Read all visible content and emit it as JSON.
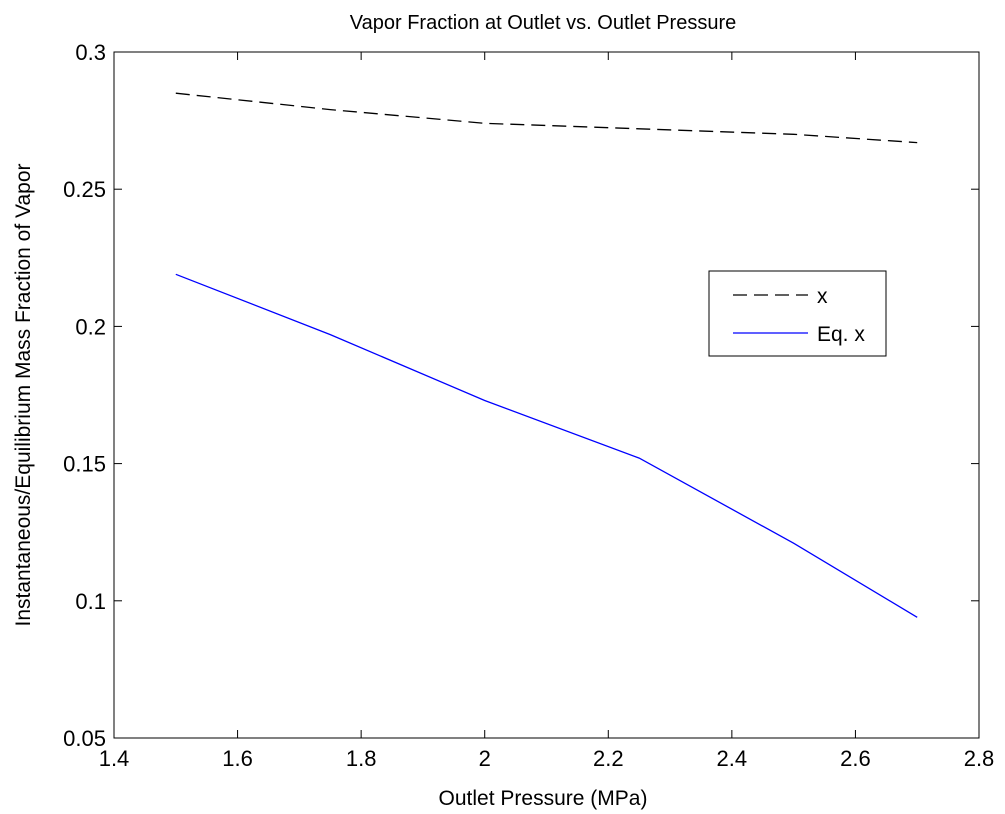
{
  "chart_data": {
    "type": "line",
    "title": "Vapor Fraction at Outlet vs. Outlet Pressure",
    "xlabel": "Outlet Pressure (MPa)",
    "ylabel": "Instantaneous/Equilibrium Mass Fraction of Vapor",
    "xlim": [
      1.4,
      2.8
    ],
    "ylim": [
      0.05,
      0.3
    ],
    "xticks": [
      1.4,
      1.6,
      1.8,
      2.0,
      2.2,
      2.4,
      2.6,
      2.8
    ],
    "xtick_labels": [
      "1.4",
      "1.6",
      "1.8",
      "2",
      "2.2",
      "2.4",
      "2.6",
      "2.8"
    ],
    "yticks": [
      0.05,
      0.1,
      0.15,
      0.2,
      0.25,
      0.3
    ],
    "ytick_labels": [
      "0.05",
      "0.1",
      "0.15",
      "0.2",
      "0.25",
      "0.3"
    ],
    "grid": false,
    "legend_position": "right",
    "series": [
      {
        "name": "x",
        "color": "#000000",
        "dash": "dashed",
        "x": [
          1.5,
          1.75,
          2.0,
          2.25,
          2.5,
          2.7
        ],
        "y": [
          0.285,
          0.279,
          0.274,
          0.272,
          0.27,
          0.267
        ]
      },
      {
        "name": "Eq. x",
        "color": "#0000ff",
        "dash": "solid",
        "x": [
          1.5,
          1.75,
          2.0,
          2.25,
          2.5,
          2.7
        ],
        "y": [
          0.219,
          0.197,
          0.173,
          0.152,
          0.121,
          0.094
        ]
      }
    ]
  }
}
